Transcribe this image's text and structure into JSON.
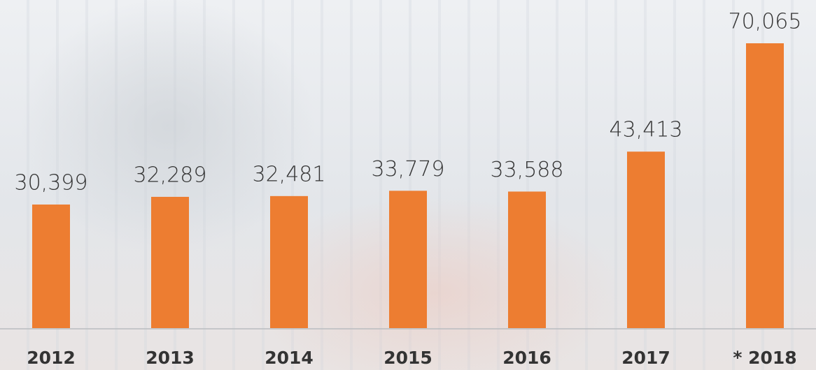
{
  "chart_data": {
    "type": "bar",
    "categories": [
      "2012",
      "2013",
      "2014",
      "2015",
      "2016",
      "2017",
      "* 2018"
    ],
    "values": [
      30399,
      32289,
      32481,
      33779,
      33588,
      43413,
      70065
    ],
    "value_labels": [
      "30,399",
      "32,289",
      "32,481",
      "33,779",
      "33,588",
      "43,413",
      "70,065"
    ],
    "color": "#ed7d31"
  }
}
